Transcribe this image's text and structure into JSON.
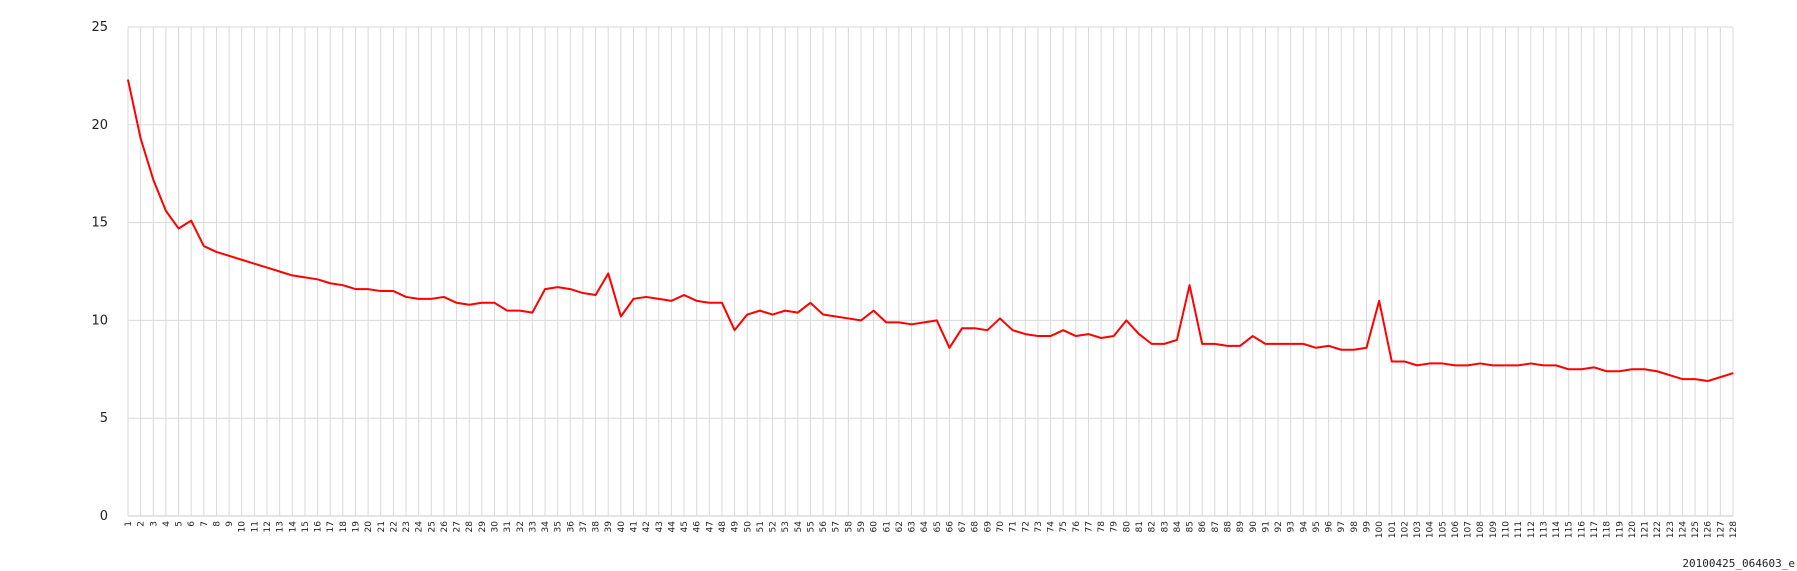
{
  "footer": {
    "label": "20100425_064603_e"
  },
  "colors": {
    "series": "#ff0000",
    "grid": "#d9d9d9",
    "background": "#ffffff"
  },
  "chart_data": {
    "type": "line",
    "title": "",
    "xlabel": "",
    "ylabel": "",
    "ylim": [
      0,
      25
    ],
    "yticks": [
      0,
      5,
      10,
      15,
      20,
      25
    ],
    "grid": true,
    "legend": "none",
    "x": [
      1,
      2,
      3,
      4,
      5,
      6,
      7,
      8,
      9,
      10,
      11,
      12,
      13,
      14,
      15,
      16,
      17,
      18,
      19,
      20,
      21,
      22,
      23,
      24,
      25,
      26,
      27,
      28,
      29,
      30,
      31,
      32,
      33,
      34,
      35,
      36,
      37,
      38,
      39,
      40,
      41,
      42,
      43,
      44,
      45,
      46,
      47,
      48,
      49,
      50,
      51,
      52,
      53,
      54,
      55,
      56,
      57,
      58,
      59,
      60,
      61,
      62,
      63,
      64,
      65,
      66,
      67,
      68,
      69,
      70,
      71,
      72,
      73,
      74,
      75,
      76,
      77,
      78,
      79,
      80,
      81,
      82,
      83,
      84,
      85,
      86,
      87,
      88,
      89,
      90,
      91,
      92,
      93,
      94,
      95,
      96,
      97,
      98,
      99,
      100,
      101,
      102,
      103,
      104,
      105,
      106,
      107,
      108,
      109,
      110,
      111,
      112,
      113,
      114,
      115,
      116,
      117,
      118,
      119,
      120,
      121,
      122,
      123,
      124,
      125,
      126,
      127,
      128
    ],
    "series": [
      {
        "color": "#ff0000",
        "values": [
          22.3,
          19.3,
          17.2,
          15.6,
          14.7,
          15.1,
          13.8,
          13.5,
          13.3,
          13.1,
          12.9,
          12.7,
          12.5,
          12.3,
          12.2,
          12.1,
          11.9,
          11.8,
          11.6,
          11.6,
          11.5,
          11.5,
          11.2,
          11.1,
          11.1,
          11.2,
          10.9,
          10.8,
          10.9,
          10.9,
          10.5,
          10.5,
          10.4,
          11.6,
          11.7,
          11.6,
          11.4,
          11.3,
          12.4,
          10.2,
          11.1,
          11.2,
          11.1,
          11.0,
          11.3,
          11.0,
          10.9,
          10.9,
          9.5,
          10.3,
          10.5,
          10.3,
          10.5,
          10.4,
          10.9,
          10.3,
          10.2,
          10.1,
          10.0,
          10.5,
          9.9,
          9.9,
          9.8,
          9.9,
          10.0,
          8.6,
          9.6,
          9.6,
          9.5,
          10.1,
          9.5,
          9.3,
          9.2,
          9.2,
          9.5,
          9.2,
          9.3,
          9.1,
          9.2,
          10.0,
          9.3,
          8.8,
          8.8,
          9.0,
          11.8,
          8.8,
          8.8,
          8.7,
          8.7,
          9.2,
          8.8,
          8.8,
          8.8,
          8.8,
          8.6,
          8.7,
          8.5,
          8.5,
          8.6,
          11.0,
          7.9,
          7.9,
          7.7,
          7.8,
          7.8,
          7.7,
          7.7,
          7.8,
          7.7,
          7.7,
          7.7,
          7.8,
          7.7,
          7.7,
          7.5,
          7.5,
          7.6,
          7.4,
          7.4,
          7.5,
          7.5,
          7.4,
          7.2,
          7.0,
          7.0,
          6.9,
          7.1,
          7.3
        ]
      }
    ]
  }
}
